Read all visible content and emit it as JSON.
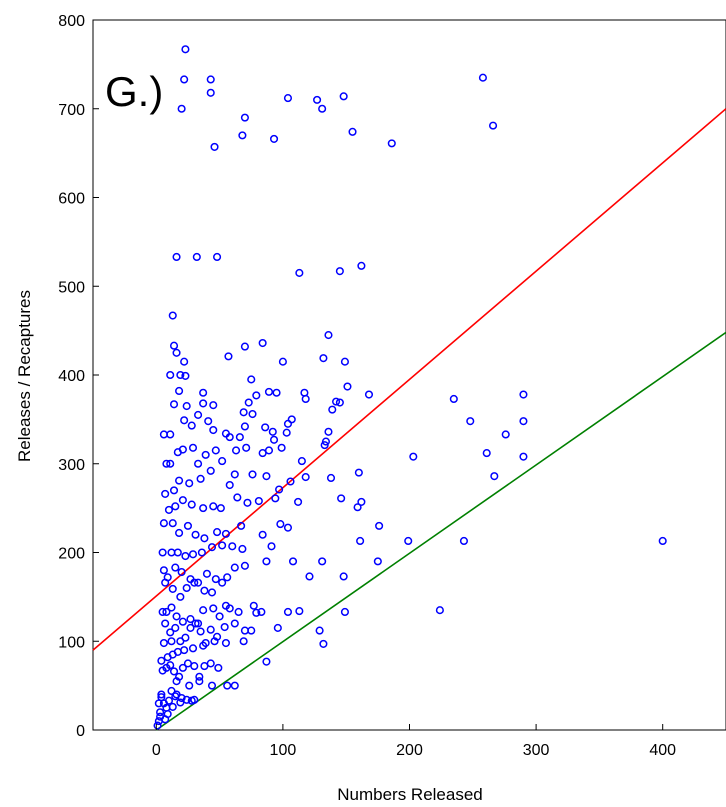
{
  "chart_data": {
    "type": "scatter",
    "panel_label": "G.)",
    "xlabel": "Numbers Released",
    "ylabel": "Releases / Recaptures",
    "xlim": [
      -50,
      450
    ],
    "ylim": [
      0,
      800
    ],
    "x_ticks": [
      0,
      100,
      200,
      300,
      400
    ],
    "y_ticks": [
      0,
      100,
      200,
      300,
      400,
      500,
      600,
      700,
      800
    ],
    "x_tick_labels": [
      "0",
      "100",
      "200",
      "300",
      "400"
    ],
    "y_tick_labels": [
      "0",
      "100",
      "200",
      "300",
      "400",
      "500",
      "600",
      "700",
      "800"
    ],
    "grid": false,
    "marker_color": "#0000ff",
    "lines": [
      {
        "color": "#ff0000",
        "x": [
          -50,
          450
        ],
        "y": [
          90,
          700
        ]
      },
      {
        "color": "#008000",
        "x": [
          0,
          450
        ],
        "y": [
          0,
          448
        ]
      }
    ],
    "points": [
      [
        23,
        767
      ],
      [
        22,
        733
      ],
      [
        43,
        733
      ],
      [
        20,
        700
      ],
      [
        43,
        718
      ],
      [
        70,
        690
      ],
      [
        46,
        657
      ],
      [
        68,
        670
      ],
      [
        93,
        666
      ],
      [
        104,
        712
      ],
      [
        127,
        710
      ],
      [
        131,
        700
      ],
      [
        148,
        714
      ],
      [
        155,
        674
      ],
      [
        186,
        661
      ],
      [
        258,
        735
      ],
      [
        266,
        681
      ],
      [
        16,
        533
      ],
      [
        32,
        533
      ],
      [
        48,
        533
      ],
      [
        113,
        515
      ],
      [
        145,
        517
      ],
      [
        162,
        523
      ],
      [
        13,
        467
      ],
      [
        14,
        433
      ],
      [
        16,
        425
      ],
      [
        22,
        415
      ],
      [
        70,
        432
      ],
      [
        84,
        436
      ],
      [
        100,
        415
      ],
      [
        132,
        419
      ],
      [
        136,
        445
      ],
      [
        149,
        415
      ],
      [
        57,
        421
      ],
      [
        37,
        380
      ],
      [
        75,
        395
      ],
      [
        89,
        381
      ],
      [
        95,
        380
      ],
      [
        117,
        380
      ],
      [
        118,
        373
      ],
      [
        142,
        370
      ],
      [
        145,
        369
      ],
      [
        151,
        387
      ],
      [
        168,
        378
      ],
      [
        290,
        378
      ],
      [
        235,
        373
      ],
      [
        19,
        400
      ],
      [
        11,
        400
      ],
      [
        23,
        399
      ],
      [
        18,
        382
      ],
      [
        14,
        367
      ],
      [
        24,
        365
      ],
      [
        37,
        368
      ],
      [
        45,
        366
      ],
      [
        73,
        369
      ],
      [
        79,
        377
      ],
      [
        69,
        358
      ],
      [
        76,
        356
      ],
      [
        22,
        349
      ],
      [
        28,
        343
      ],
      [
        33,
        355
      ],
      [
        41,
        348
      ],
      [
        45,
        338
      ],
      [
        55,
        334
      ],
      [
        58,
        330
      ],
      [
        66,
        330
      ],
      [
        70,
        342
      ],
      [
        86,
        341
      ],
      [
        92,
        336
      ],
      [
        104,
        345
      ],
      [
        107,
        350
      ],
      [
        136,
        336
      ],
      [
        139,
        361
      ],
      [
        134,
        325
      ],
      [
        248,
        348
      ],
      [
        290,
        348
      ],
      [
        276,
        333
      ],
      [
        103,
        335
      ],
      [
        93,
        327
      ],
      [
        11,
        333
      ],
      [
        6,
        333
      ],
      [
        17,
        313
      ],
      [
        21,
        316
      ],
      [
        29,
        318
      ],
      [
        33,
        300
      ],
      [
        39,
        310
      ],
      [
        47,
        315
      ],
      [
        52,
        303
      ],
      [
        63,
        315
      ],
      [
        71,
        318
      ],
      [
        84,
        312
      ],
      [
        89,
        315
      ],
      [
        99,
        318
      ],
      [
        115,
        303
      ],
      [
        133,
        321
      ],
      [
        160,
        290
      ],
      [
        138,
        284
      ],
      [
        118,
        285
      ],
      [
        106,
        280
      ],
      [
        97,
        271
      ],
      [
        87,
        286
      ],
      [
        76,
        288
      ],
      [
        62,
        288
      ],
      [
        58,
        276
      ],
      [
        43,
        292
      ],
      [
        35,
        283
      ],
      [
        26,
        278
      ],
      [
        18,
        281
      ],
      [
        14,
        270
      ],
      [
        8,
        300
      ],
      [
        7,
        266
      ],
      [
        11,
        300
      ],
      [
        203,
        308
      ],
      [
        261,
        312
      ],
      [
        267,
        286
      ],
      [
        290,
        308
      ],
      [
        10,
        248
      ],
      [
        15,
        252
      ],
      [
        21,
        259
      ],
      [
        28,
        254
      ],
      [
        37,
        250
      ],
      [
        45,
        252
      ],
      [
        51,
        250
      ],
      [
        64,
        262
      ],
      [
        72,
        256
      ],
      [
        81,
        258
      ],
      [
        94,
        261
      ],
      [
        112,
        257
      ],
      [
        146,
        261
      ],
      [
        159,
        251
      ],
      [
        162,
        257
      ],
      [
        6,
        233
      ],
      [
        13,
        233
      ],
      [
        18,
        222
      ],
      [
        25,
        230
      ],
      [
        31,
        220
      ],
      [
        38,
        216
      ],
      [
        48,
        223
      ],
      [
        55,
        221
      ],
      [
        67,
        230
      ],
      [
        84,
        220
      ],
      [
        98,
        232
      ],
      [
        104,
        228
      ],
      [
        176,
        230
      ],
      [
        161,
        213
      ],
      [
        199,
        213
      ],
      [
        243,
        213
      ],
      [
        400,
        213
      ],
      [
        5,
        200
      ],
      [
        12,
        200
      ],
      [
        17,
        200
      ],
      [
        23,
        196
      ],
      [
        29,
        198
      ],
      [
        36,
        200
      ],
      [
        44,
        206
      ],
      [
        52,
        208
      ],
      [
        60,
        207
      ],
      [
        68,
        204
      ],
      [
        91,
        207
      ],
      [
        6,
        180
      ],
      [
        9,
        172
      ],
      [
        15,
        183
      ],
      [
        20,
        178
      ],
      [
        27,
        170
      ],
      [
        33,
        166
      ],
      [
        40,
        176
      ],
      [
        47,
        170
      ],
      [
        56,
        172
      ],
      [
        62,
        183
      ],
      [
        70,
        185
      ],
      [
        87,
        190
      ],
      [
        108,
        190
      ],
      [
        131,
        190
      ],
      [
        148,
        173
      ],
      [
        175,
        190
      ],
      [
        121,
        173
      ],
      [
        7,
        166
      ],
      [
        13,
        159
      ],
      [
        19,
        150
      ],
      [
        24,
        160
      ],
      [
        30,
        166
      ],
      [
        38,
        157
      ],
      [
        44,
        155
      ],
      [
        52,
        166
      ],
      [
        5,
        133
      ],
      [
        8,
        133
      ],
      [
        12,
        138
      ],
      [
        16,
        128
      ],
      [
        21,
        122
      ],
      [
        27,
        125
      ],
      [
        33,
        120
      ],
      [
        37,
        135
      ],
      [
        45,
        137
      ],
      [
        50,
        128
      ],
      [
        55,
        140
      ],
      [
        58,
        137
      ],
      [
        65,
        133
      ],
      [
        77,
        140
      ],
      [
        83,
        133
      ],
      [
        104,
        133
      ],
      [
        113,
        134
      ],
      [
        149,
        133
      ],
      [
        224,
        135
      ],
      [
        79,
        132
      ],
      [
        7,
        120
      ],
      [
        11,
        110
      ],
      [
        15,
        115
      ],
      [
        19,
        100
      ],
      [
        23,
        104
      ],
      [
        27,
        115
      ],
      [
        31,
        120
      ],
      [
        35,
        111
      ],
      [
        39,
        98
      ],
      [
        43,
        113
      ],
      [
        48,
        105
      ],
      [
        54,
        116
      ],
      [
        62,
        120
      ],
      [
        70,
        112
      ],
      [
        75,
        112
      ],
      [
        96,
        115
      ],
      [
        129,
        112
      ],
      [
        69,
        100
      ],
      [
        55,
        98
      ],
      [
        46,
        100
      ],
      [
        37,
        95
      ],
      [
        29,
        92
      ],
      [
        22,
        90
      ],
      [
        17,
        88
      ],
      [
        13,
        85
      ],
      [
        9,
        82
      ],
      [
        4,
        78
      ],
      [
        6,
        98
      ],
      [
        12,
        100
      ],
      [
        132,
        97
      ],
      [
        5,
        67
      ],
      [
        8,
        70
      ],
      [
        11,
        73
      ],
      [
        14,
        66
      ],
      [
        18,
        60
      ],
      [
        21,
        70
      ],
      [
        25,
        75
      ],
      [
        30,
        72
      ],
      [
        34,
        60
      ],
      [
        38,
        72
      ],
      [
        43,
        75
      ],
      [
        49,
        70
      ],
      [
        56,
        50
      ],
      [
        62,
        50
      ],
      [
        87,
        77
      ],
      [
        16,
        55
      ],
      [
        26,
        50
      ],
      [
        34,
        55
      ],
      [
        44,
        50
      ],
      [
        24,
        34
      ],
      [
        28,
        33
      ],
      [
        20,
        36
      ],
      [
        16,
        40
      ],
      [
        12,
        44
      ],
      [
        10,
        33
      ],
      [
        8,
        25
      ],
      [
        6,
        30
      ],
      [
        4,
        37
      ],
      [
        3,
        20
      ],
      [
        2,
        10
      ],
      [
        1,
        5
      ],
      [
        3,
        15
      ],
      [
        7,
        12
      ],
      [
        4,
        40
      ],
      [
        15,
        38
      ],
      [
        30,
        34
      ],
      [
        19,
        31
      ],
      [
        13,
        26
      ],
      [
        9,
        18
      ],
      [
        2,
        30
      ]
    ]
  }
}
